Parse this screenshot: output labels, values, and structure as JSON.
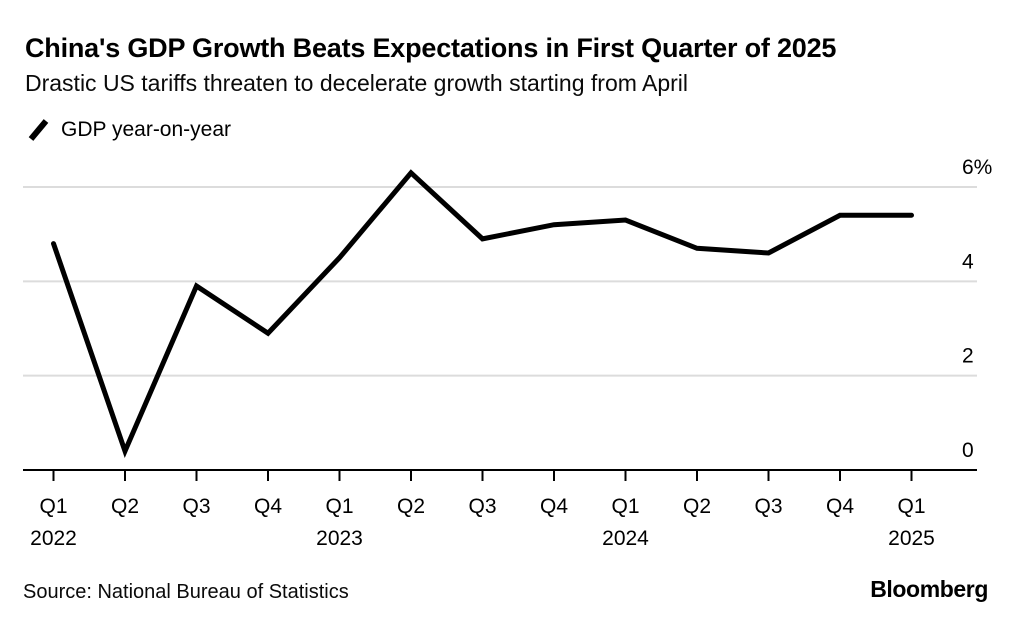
{
  "header": {
    "title": "China's GDP Growth Beats Expectations in First Quarter of 2025",
    "subtitle": "Drastic US tariffs threaten to decelerate growth starting from April"
  },
  "legend": {
    "icon": "line-series-icon",
    "label": "GDP year-on-year"
  },
  "footer": {
    "source": "Source: National Bureau of Statistics",
    "brand": "Bloomberg"
  },
  "colors": {
    "line": "#000000",
    "grid": "#dcdcdc",
    "axis": "#000000",
    "text": "#000000",
    "background": "#ffffff"
  },
  "chart_data": {
    "type": "line",
    "title": "China's GDP Growth Beats Expectations in First Quarter of 2025",
    "subtitle": "Drastic US tariffs threaten to decelerate growth starting from April",
    "xlabel": "",
    "ylabel": "",
    "unit": "%",
    "grid": "horizontal",
    "legend_position": "top-left",
    "categories": [
      "Q1",
      "Q2",
      "Q3",
      "Q4",
      "Q1",
      "Q2",
      "Q3",
      "Q4",
      "Q1",
      "Q2",
      "Q3",
      "Q4",
      "Q1"
    ],
    "year_markers": [
      {
        "index": 0,
        "label": "2022"
      },
      {
        "index": 4,
        "label": "2023"
      },
      {
        "index": 8,
        "label": "2024"
      },
      {
        "index": 12,
        "label": "2025"
      }
    ],
    "series": [
      {
        "name": "GDP year-on-year",
        "values": [
          4.8,
          0.4,
          3.9,
          2.9,
          4.5,
          6.3,
          4.9,
          5.2,
          5.3,
          4.7,
          4.6,
          5.4,
          5.4
        ]
      }
    ],
    "y_ticks": [
      {
        "value": 0,
        "label": "0"
      },
      {
        "value": 2,
        "label": "2"
      },
      {
        "value": 4,
        "label": "4"
      },
      {
        "value": 6,
        "label": "6%"
      }
    ],
    "ylim": [
      0,
      6.6
    ]
  }
}
